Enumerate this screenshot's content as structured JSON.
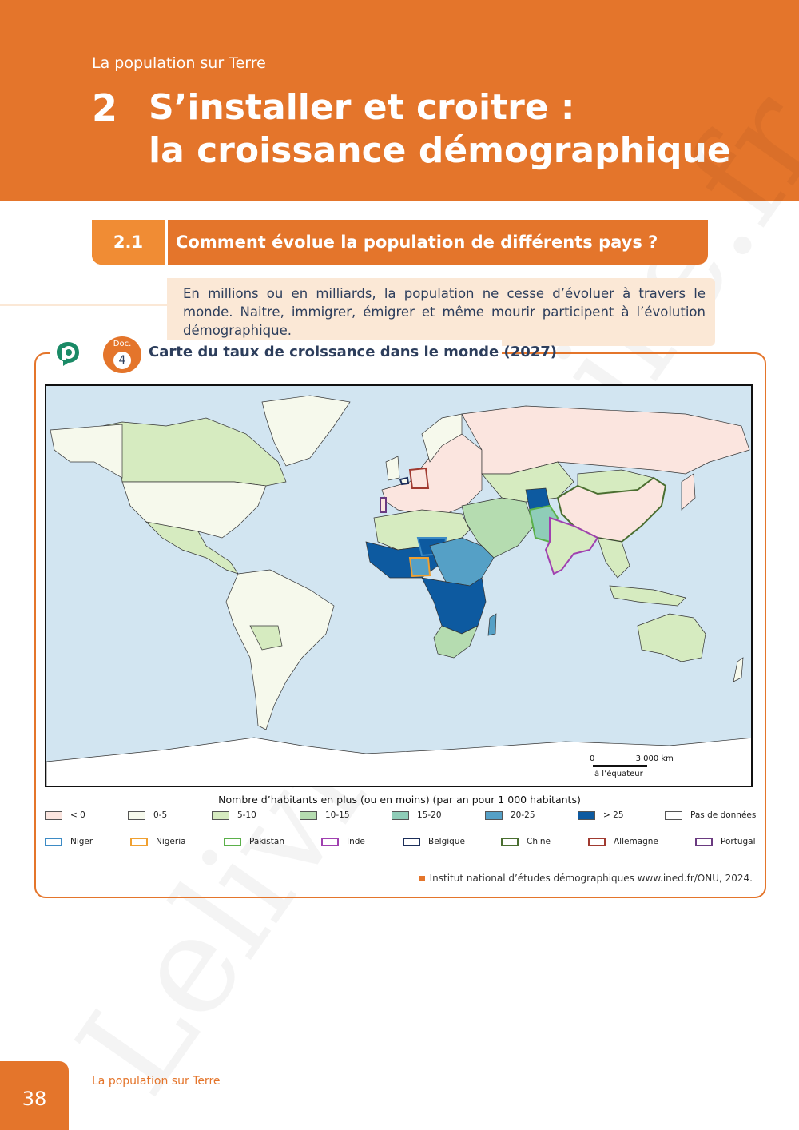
{
  "header": {
    "kicker": "La population sur Terre",
    "chapter_number": "2",
    "title_line1": "S’installer et croitre :",
    "title_line2": "la croissance démographique"
  },
  "section": {
    "number": "2.1",
    "title": "Comment évolue la population de différents pays ?"
  },
  "intro": "En millions ou en milliards, la population ne cesse d’évoluer à travers le monde. Naitre, immigrer, émigrer et même mourir participent à l’évolution démographique.",
  "document": {
    "label": "Doc.",
    "number": "4",
    "title": "Carte du taux de croissance dans le monde (2027)",
    "scale": {
      "zero": "0",
      "distance": "3 000 km",
      "note": "à l’équateur"
    },
    "legend_title": "Nombre d’habitants en plus (ou en moins) (par an pour 1 000 habitants)",
    "classes": [
      {
        "label": "< 0",
        "color": "#fbe5df"
      },
      {
        "label": "0-5",
        "color": "#f6f9ec"
      },
      {
        "label": "5-10",
        "color": "#d6ebc0"
      },
      {
        "label": "10-15",
        "color": "#b5dcb0"
      },
      {
        "label": "15-20",
        "color": "#8fcdb8"
      },
      {
        "label": "20-25",
        "color": "#55a0c6"
      },
      {
        "label": "> 25",
        "color": "#0d5aa0"
      },
      {
        "label": "Pas de données",
        "color": "#ffffff"
      }
    ],
    "countries": [
      {
        "label": "Niger",
        "color": "#3d8bc5"
      },
      {
        "label": "Nigeria",
        "color": "#f0a030"
      },
      {
        "label": "Pakistan",
        "color": "#5bb04a"
      },
      {
        "label": "Inde",
        "color": "#a040b0"
      },
      {
        "label": "Belgique",
        "color": "#1c2e5a"
      },
      {
        "label": "Chine",
        "color": "#4a6e30"
      },
      {
        "label": "Allemagne",
        "color": "#a03a30"
      },
      {
        "label": "Portugal",
        "color": "#6a3a80"
      }
    ],
    "source": "Institut national d’études démographiques www.ined.fr/ONU, 2024."
  },
  "watermark": "Lelivrescolaire.fr",
  "footer": {
    "page_number": "38",
    "text": "La population sur Terre"
  }
}
